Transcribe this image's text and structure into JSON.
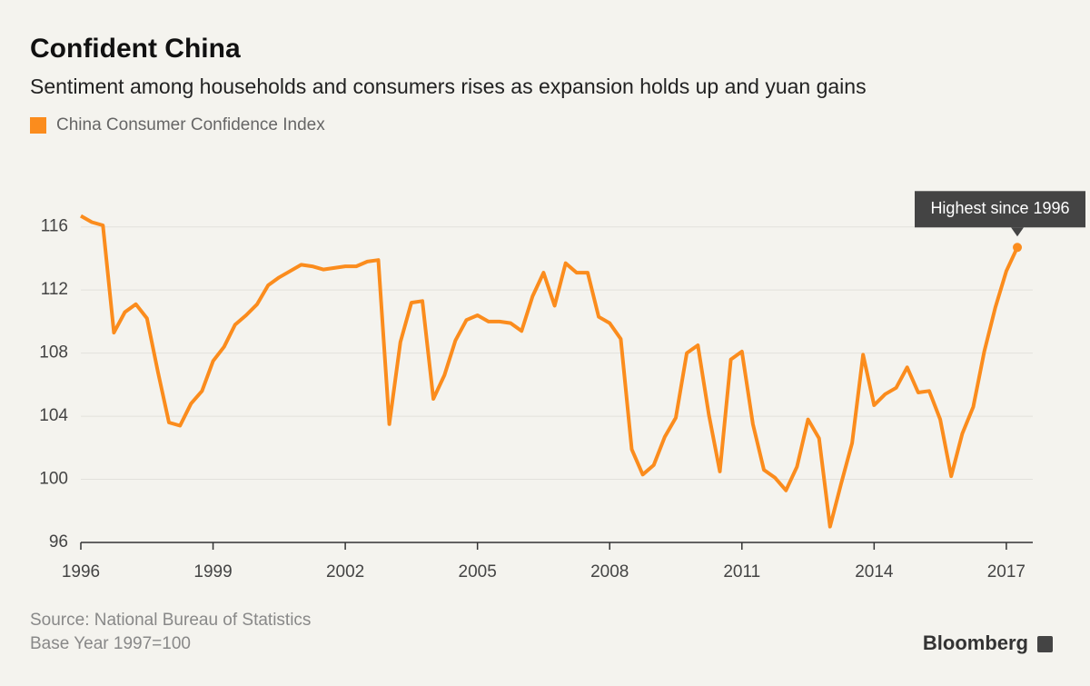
{
  "chart_data": {
    "type": "line",
    "title": "Confident China",
    "subtitle": "Sentiment among households and consumers rises as expansion holds up and yuan gains",
    "series": [
      {
        "name": "China Consumer Confidence Index",
        "color": "#fb8c1d",
        "values": [
          116.7,
          116.3,
          116.1,
          109.3,
          110.6,
          111.1,
          110.2,
          106.8,
          103.6,
          103.4,
          104.8,
          105.6,
          107.5,
          108.4,
          109.8,
          110.4,
          111.1,
          112.3,
          112.8,
          113.2,
          113.6,
          113.5,
          113.3,
          113.4,
          113.5,
          113.5,
          113.8,
          113.9,
          103.5,
          108.7,
          111.2,
          111.3,
          105.1,
          106.6,
          108.8,
          110.1,
          110.4,
          110.0,
          110.0,
          109.9,
          109.4,
          111.6,
          113.1,
          111.0,
          113.7,
          113.1,
          113.1,
          110.3,
          109.9,
          108.9,
          101.9,
          100.3,
          100.9,
          102.7,
          103.9,
          108.0,
          108.5,
          104.1,
          100.5,
          107.6,
          108.1,
          103.5,
          100.6,
          100.1,
          99.3,
          100.8,
          103.8,
          102.6,
          97.0,
          99.7,
          102.3,
          107.9,
          104.7,
          105.4,
          105.8,
          107.1,
          105.5,
          105.6,
          103.8,
          100.2,
          102.9,
          104.6,
          108.1,
          110.9,
          113.2,
          114.7
        ]
      }
    ],
    "x": [
      1996,
      1996.25,
      1996.5,
      1996.75,
      1997,
      1997.25,
      1997.5,
      1997.75,
      1998,
      1998.25,
      1998.5,
      1998.75,
      1999,
      1999.25,
      1999.5,
      1999.75,
      2000,
      2000.25,
      2000.5,
      2000.75,
      2001,
      2001.25,
      2001.5,
      2001.75,
      2002,
      2002.25,
      2002.5,
      2002.75,
      2003,
      2003.25,
      2003.5,
      2003.75,
      2004,
      2004.25,
      2004.5,
      2004.75,
      2005,
      2005.25,
      2005.5,
      2005.75,
      2006,
      2006.25,
      2006.5,
      2006.75,
      2007,
      2007.25,
      2007.5,
      2007.75,
      2008,
      2008.25,
      2008.5,
      2008.75,
      2009,
      2009.25,
      2009.5,
      2009.75,
      2010,
      2010.25,
      2010.5,
      2010.75,
      2011,
      2011.25,
      2011.5,
      2011.75,
      2012,
      2012.25,
      2012.5,
      2012.75,
      2013,
      2013.25,
      2013.5,
      2013.75,
      2014,
      2014.25,
      2014.5,
      2014.75,
      2015,
      2015.25,
      2015.5,
      2015.75,
      2016,
      2016.25,
      2016.5,
      2016.75,
      2017,
      2017.25
    ],
    "xlim": [
      1996,
      2017.6
    ],
    "xticks": [
      1996,
      1999,
      2002,
      2005,
      2008,
      2011,
      2014,
      2017
    ],
    "ylim": [
      96,
      118
    ],
    "yticks": [
      96,
      100,
      104,
      108,
      112,
      116
    ],
    "grid": true,
    "annotation": "Highest since 1996",
    "source": "Source: National Bureau of Statistics",
    "note": "Base Year 1997=100",
    "brand": "Bloomberg"
  }
}
